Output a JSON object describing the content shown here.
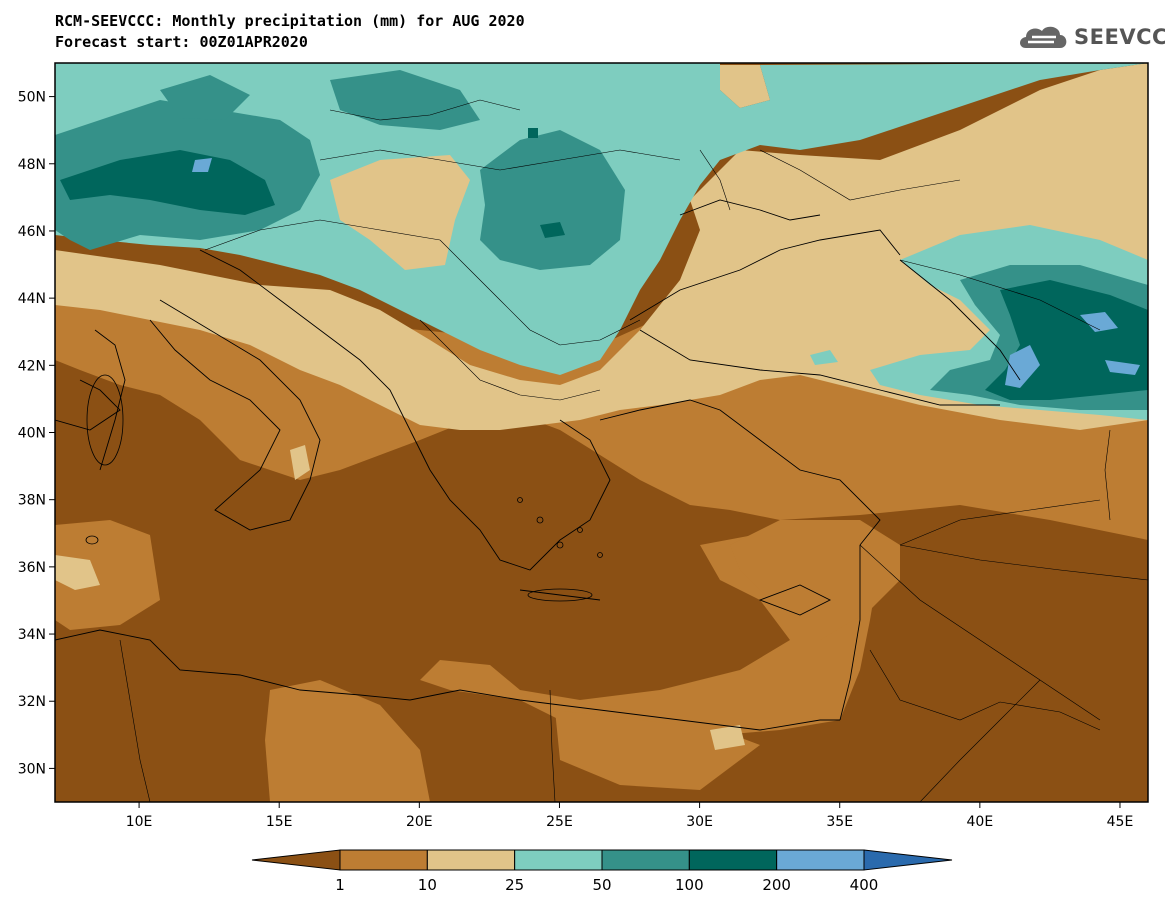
{
  "title": "RCM-SEEVCCC: Monthly precipitation (mm) for AUG 2020",
  "subtitle": "Forecast start: 00Z01APR2020",
  "logo_text": "SEEVCCC",
  "map": {
    "lat_ticks": [
      "50N",
      "48N",
      "46N",
      "44N",
      "42N",
      "40N",
      "38N",
      "36N",
      "34N",
      "32N",
      "30N"
    ],
    "lon_ticks": [
      "10E",
      "15E",
      "20E",
      "25E",
      "30E",
      "35E",
      "40E",
      "45E"
    ],
    "lat_range": [
      29,
      51
    ],
    "lon_range": [
      7,
      46
    ]
  },
  "colorbar": {
    "labels": [
      "1",
      "10",
      "25",
      "50",
      "100",
      "200",
      "400"
    ],
    "colors": [
      "#8b5014",
      "#bd7d33",
      "#e1c489",
      "#7ecdbf",
      "#359189",
      "#00665c",
      "#6aa9d6",
      "#2a6aad"
    ]
  }
}
